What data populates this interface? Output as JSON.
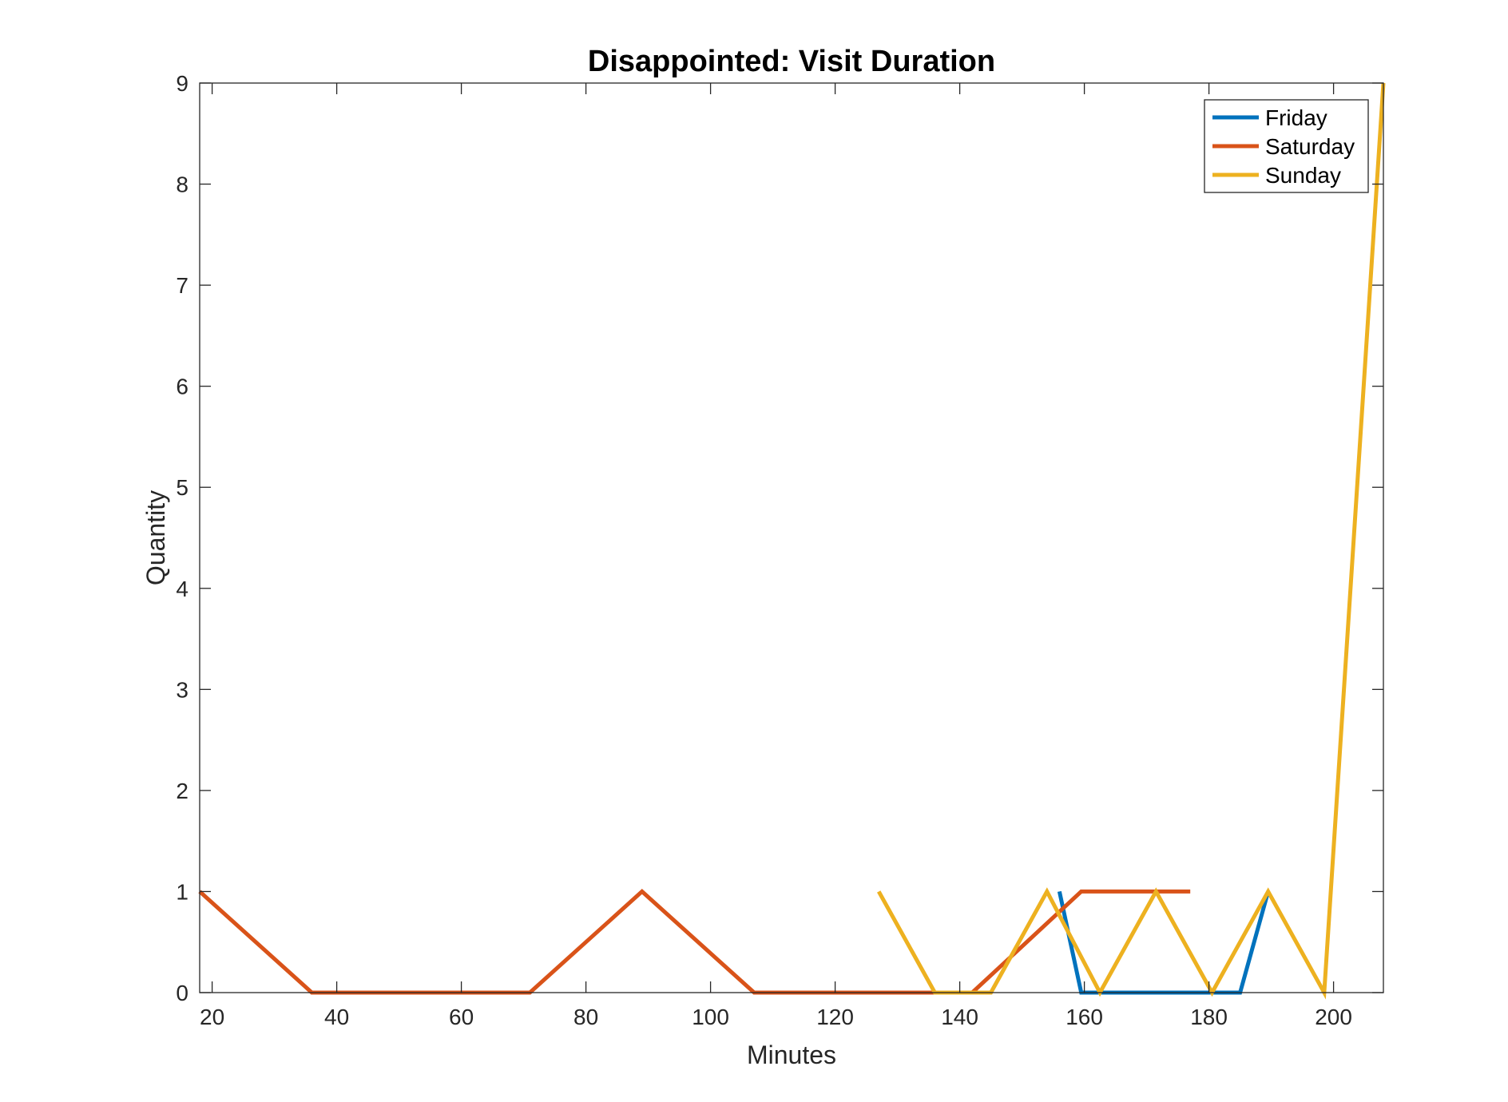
{
  "chart_data": {
    "type": "line",
    "title": "Disappointed: Visit Duration",
    "xlabel": "Minutes",
    "ylabel": "Quantity",
    "xlim": [
      18,
      208
    ],
    "ylim": [
      0,
      9
    ],
    "xticks": [
      20,
      40,
      60,
      80,
      100,
      120,
      140,
      160,
      180,
      200
    ],
    "yticks": [
      0,
      1,
      2,
      3,
      4,
      5,
      6,
      7,
      8,
      9
    ],
    "grid": false,
    "legend_position": "top-right",
    "series": [
      {
        "name": "Friday",
        "color": "#0072BD",
        "points": [
          [
            156,
            1
          ],
          [
            159.5,
            0
          ],
          [
            163,
            0
          ],
          [
            185,
            0
          ],
          [
            189.5,
            1
          ]
        ]
      },
      {
        "name": "Saturday",
        "color": "#D95319",
        "points": [
          [
            18,
            1
          ],
          [
            36,
            0
          ],
          [
            71,
            0
          ],
          [
            89,
            1
          ],
          [
            107,
            0
          ],
          [
            142,
            0
          ],
          [
            159.5,
            1
          ],
          [
            177,
            1
          ]
        ]
      },
      {
        "name": "Sunday",
        "color": "#EDB120",
        "points": [
          [
            127,
            1
          ],
          [
            136,
            0
          ],
          [
            145,
            0
          ],
          [
            154,
            1
          ],
          [
            162.5,
            0
          ],
          [
            171.5,
            1
          ],
          [
            180.5,
            0
          ],
          [
            189.5,
            1
          ],
          [
            198.5,
            0
          ],
          [
            208,
            9
          ]
        ]
      }
    ]
  }
}
